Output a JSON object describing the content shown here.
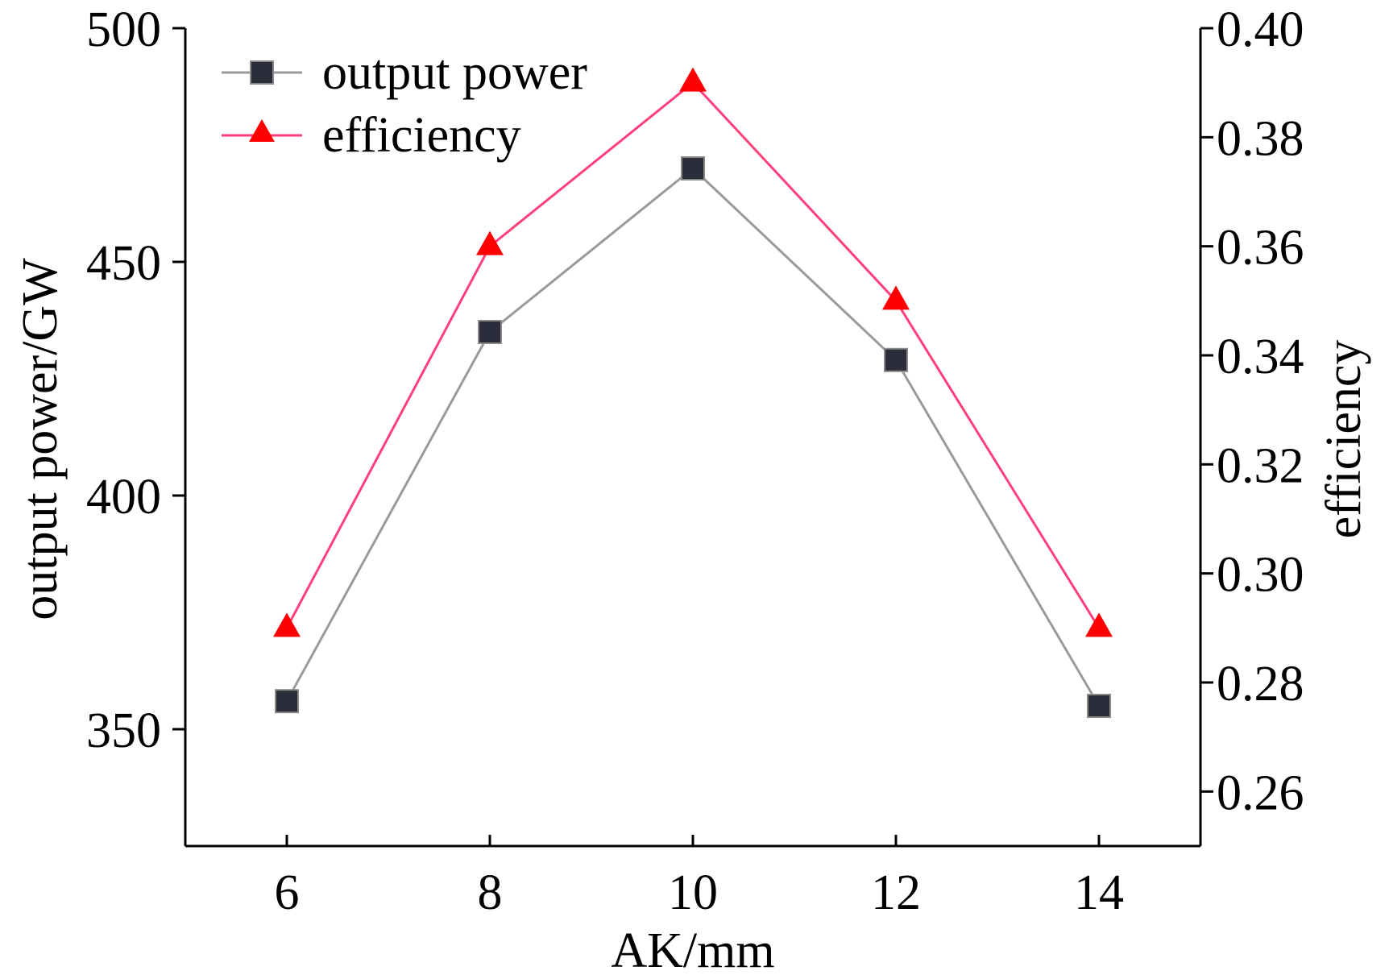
{
  "chart_data": {
    "type": "line",
    "title": "",
    "xlabel": "AK/mm",
    "ylabel_left": "output power/GW",
    "ylabel_right": "efficiency",
    "x": [
      6,
      8,
      10,
      12,
      14
    ],
    "x_ticks": [
      "6",
      "8",
      "10",
      "12",
      "14"
    ],
    "xlim": [
      5,
      15
    ],
    "ylim_left": [
      325,
      500
    ],
    "ylim_right": [
      0.25,
      0.4
    ],
    "y_left_ticks": [
      "350",
      "400",
      "450",
      "500"
    ],
    "y_right_ticks": [
      "0.26",
      "0.28",
      "0.30",
      "0.32",
      "0.34",
      "0.36",
      "0.38",
      "0.40"
    ],
    "grid": false,
    "legend_position": "top-left",
    "series": [
      {
        "name": "output power",
        "axis": "left",
        "values": [
          356,
          435,
          470,
          429,
          355
        ],
        "marker": "square",
        "line_color": "#9a9a9a",
        "marker_color": "#2b2d3a"
      },
      {
        "name": "efficiency",
        "axis": "right",
        "values": [
          0.29,
          0.36,
          0.39,
          0.35,
          0.29
        ],
        "marker": "triangle",
        "line_color": "#ff3f7a",
        "marker_color": "#ff0000"
      }
    ]
  }
}
